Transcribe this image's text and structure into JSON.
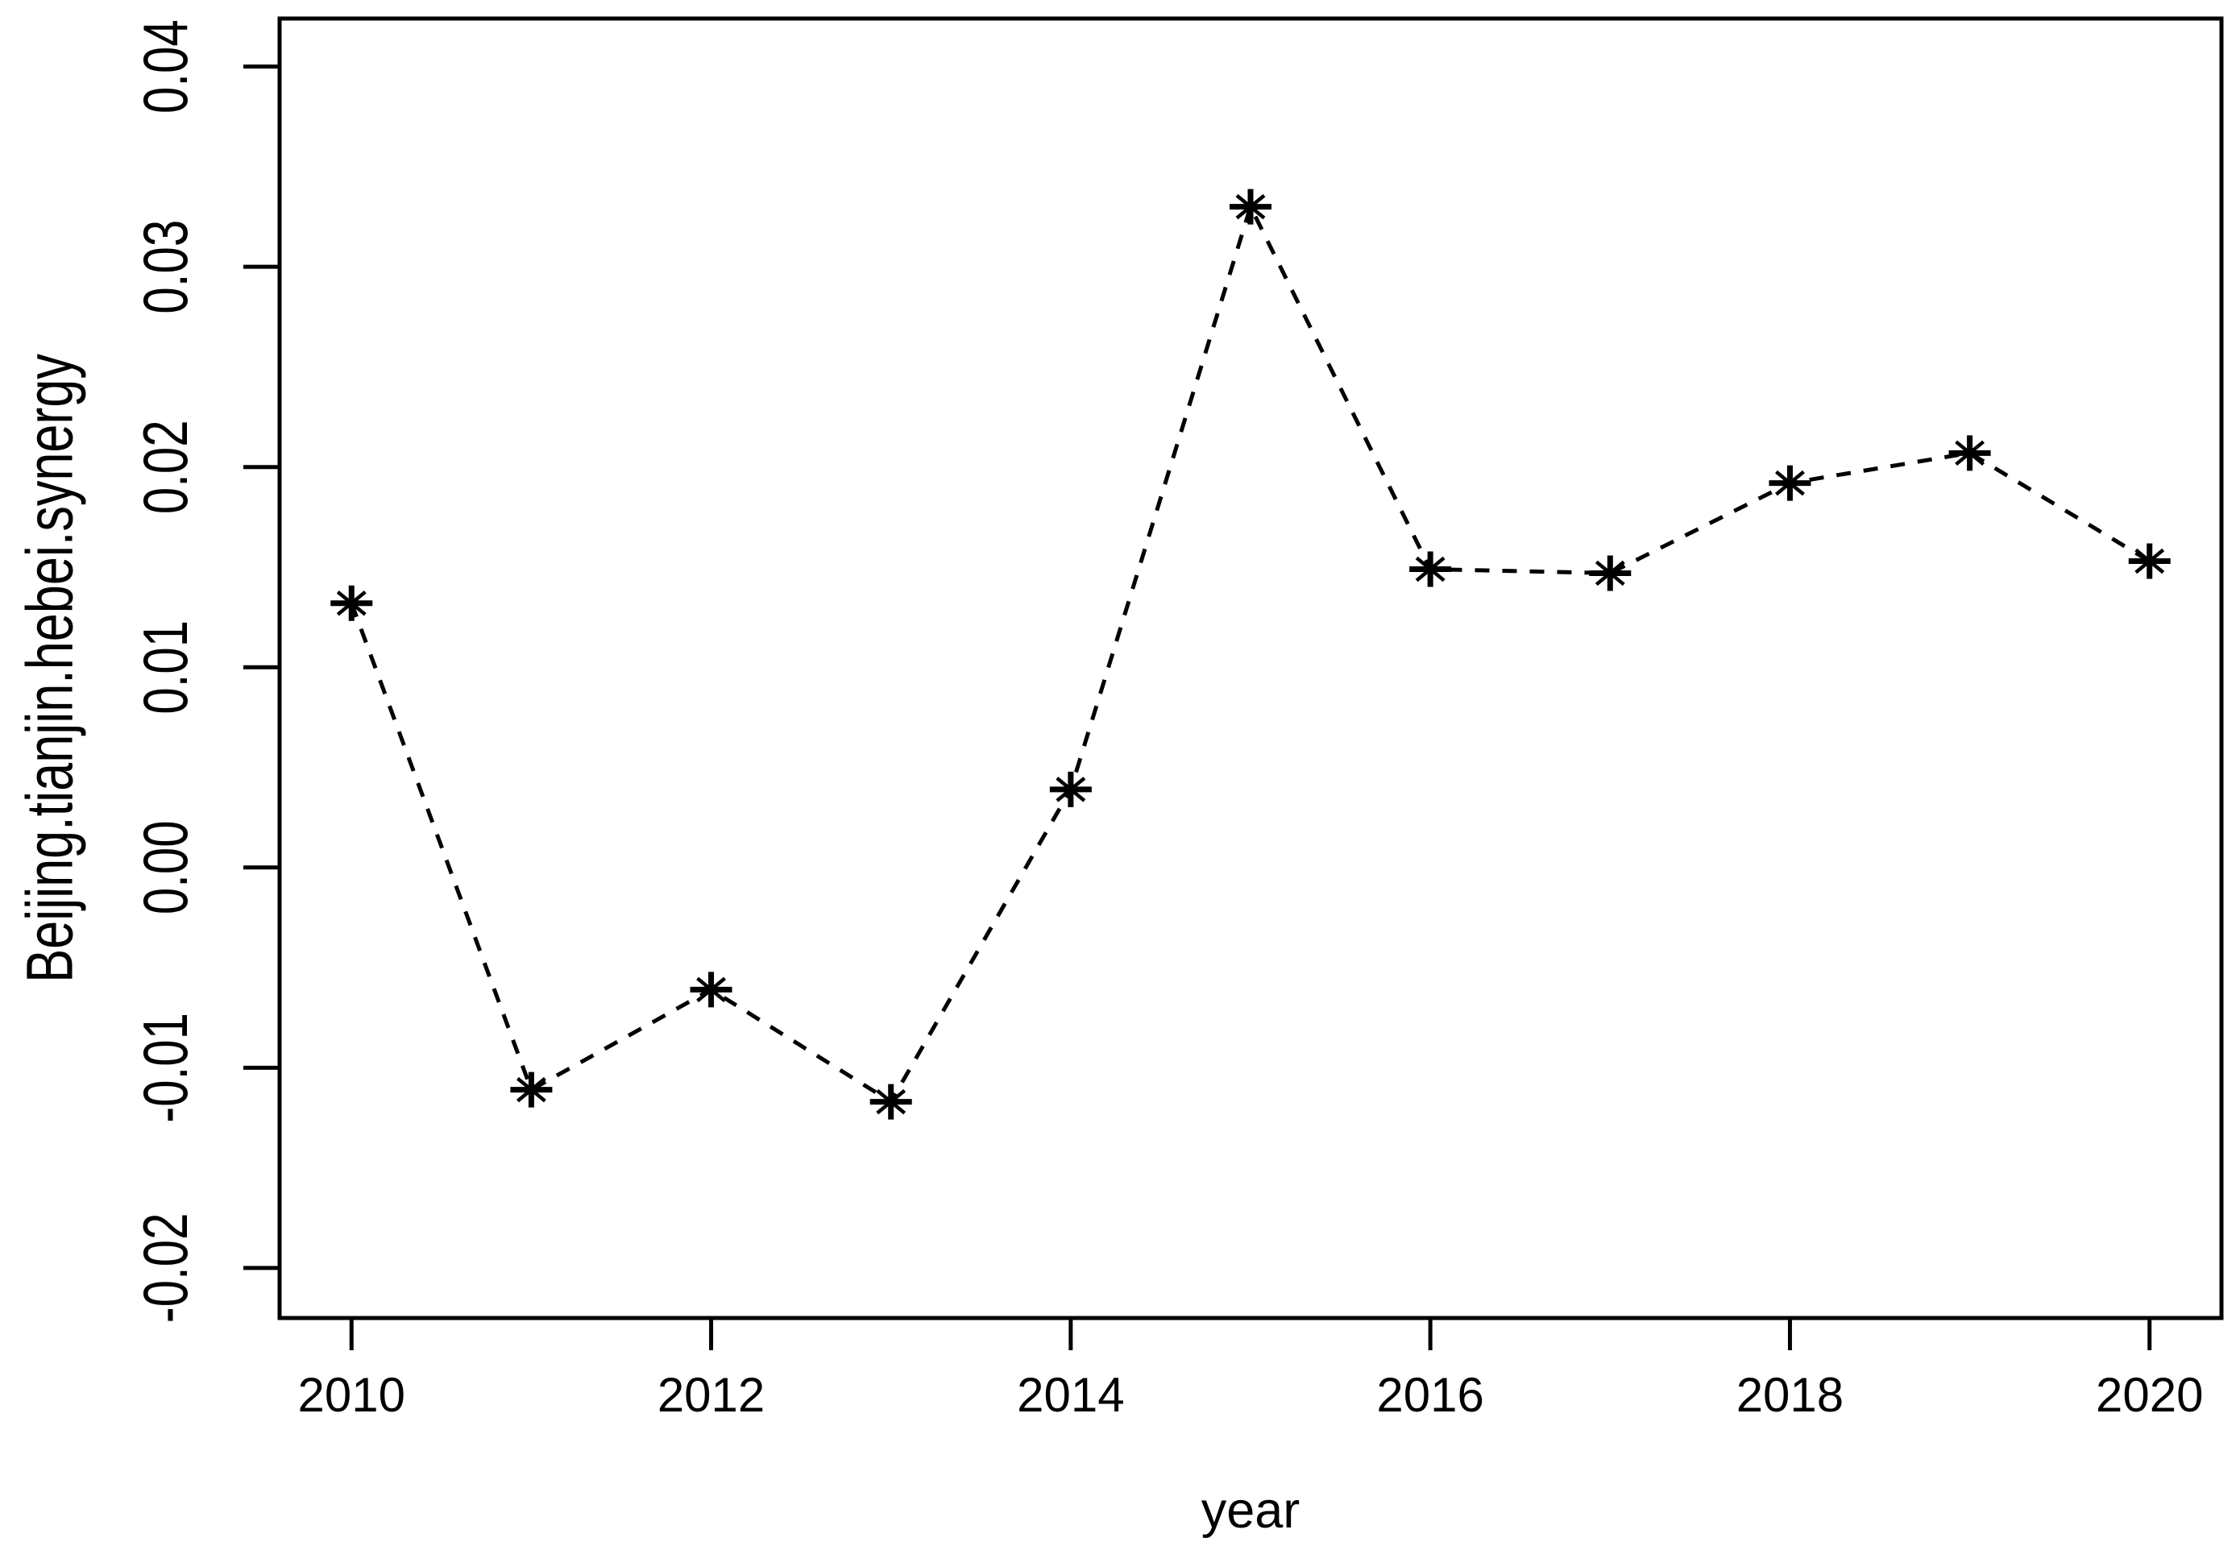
{
  "figure": {
    "background_color": "#ffffff",
    "foreground_color": "#000000"
  },
  "chart_data": {
    "type": "line",
    "title": "",
    "xlabel": "year",
    "ylabel": "Beijing.tianjin.hebei.synergy",
    "series": [
      {
        "name": "Beijing.tianjin.hebei.synergy",
        "x": [
          2010,
          2011,
          2012,
          2013,
          2014,
          2015,
          2016,
          2017,
          2018,
          2019,
          2020
        ],
        "y": [
          0.0132,
          -0.0111,
          -0.0061,
          -0.0117,
          0.0039,
          0.033,
          0.0149,
          0.0147,
          0.0192,
          0.0207,
          0.0153
        ],
        "marker": "asterisk-star-pch8",
        "line_style": "dashed",
        "color": "#000000"
      }
    ],
    "xlim": [
      2009.6,
      2020.4
    ],
    "ylim": [
      -0.0225,
      0.0424
    ],
    "x_ticks": {
      "values": [
        2010,
        2012,
        2014,
        2016,
        2018,
        2020
      ],
      "labels": [
        "2010",
        "2012",
        "2014",
        "2016",
        "2018",
        "2020"
      ]
    },
    "y_ticks": {
      "values": [
        0.04,
        0.03,
        0.02,
        0.01,
        0.0,
        -0.01,
        -0.02
      ],
      "labels": [
        "0.04",
        "0.03",
        "0.02",
        "0.01",
        "0.00",
        "-0.01",
        "-0.02"
      ]
    },
    "grid": false,
    "legend": null
  }
}
